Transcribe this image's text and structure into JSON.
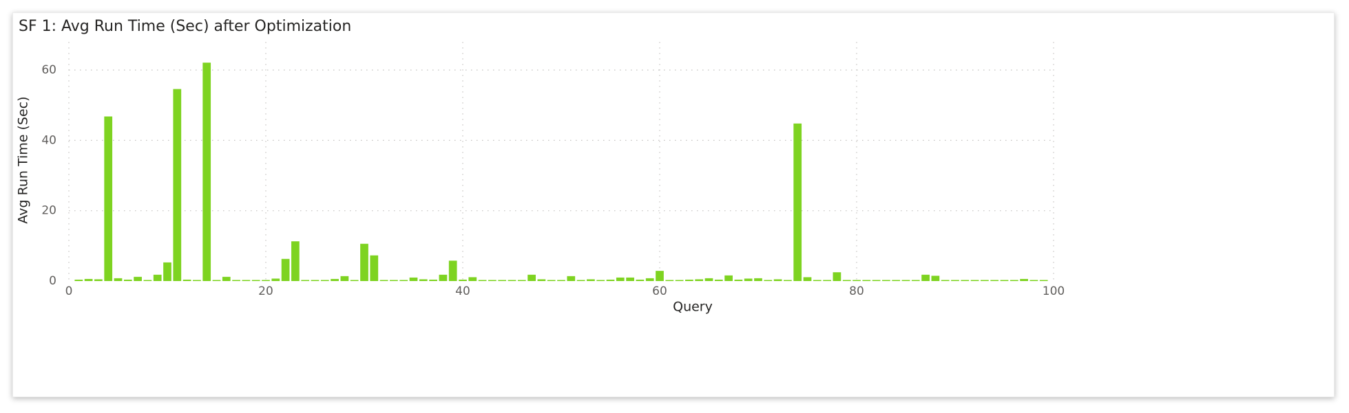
{
  "chart_data": {
    "type": "bar",
    "title": "SF 1: Avg Run Time (Sec) after Optimization",
    "xlabel": "Query",
    "ylabel": "Avg Run Time (Sec)",
    "xlim": [
      0,
      100
    ],
    "ylim": [
      0,
      68
    ],
    "xticks": [
      0,
      20,
      40,
      60,
      80,
      100
    ],
    "yticks": [
      0,
      20,
      40,
      60
    ],
    "grid": true,
    "legend": "none",
    "bar_color": "#7ed321",
    "x": [
      1,
      2,
      3,
      4,
      5,
      6,
      7,
      8,
      9,
      10,
      11,
      12,
      13,
      14,
      15,
      16,
      17,
      18,
      19,
      20,
      21,
      22,
      23,
      24,
      25,
      26,
      27,
      28,
      29,
      30,
      31,
      32,
      33,
      34,
      35,
      36,
      37,
      38,
      39,
      40,
      41,
      42,
      43,
      44,
      45,
      46,
      47,
      48,
      49,
      50,
      51,
      52,
      53,
      54,
      55,
      56,
      57,
      58,
      59,
      60,
      61,
      62,
      63,
      64,
      65,
      66,
      67,
      68,
      69,
      70,
      71,
      72,
      73,
      74,
      75,
      76,
      77,
      78,
      79,
      80,
      81,
      82,
      83,
      84,
      85,
      86,
      87,
      88,
      89,
      90,
      91,
      92,
      93,
      94,
      95,
      96,
      97,
      98,
      99
    ],
    "values": [
      0.4,
      0.6,
      0.5,
      46.8,
      0.8,
      0.4,
      1.2,
      0.3,
      1.8,
      5.3,
      54.6,
      0.4,
      0.3,
      62.1,
      0.3,
      1.2,
      0.3,
      0.3,
      0.3,
      0.3,
      0.7,
      6.3,
      11.3,
      0.3,
      0.3,
      0.3,
      0.6,
      1.4,
      0.3,
      10.6,
      7.3,
      0.3,
      0.3,
      0.3,
      1.0,
      0.5,
      0.4,
      1.8,
      5.8,
      0.4,
      1.1,
      0.3,
      0.3,
      0.3,
      0.3,
      0.3,
      1.8,
      0.5,
      0.3,
      0.3,
      1.4,
      0.3,
      0.5,
      0.3,
      0.4,
      1.0,
      1.0,
      0.4,
      0.8,
      2.9,
      0.3,
      0.3,
      0.4,
      0.5,
      0.8,
      0.4,
      1.6,
      0.4,
      0.7,
      0.8,
      0.3,
      0.5,
      0.3,
      44.8,
      1.1,
      0.3,
      0.3,
      2.5,
      0.3,
      0.3,
      0.3,
      0.3,
      0.3,
      0.3,
      0.3,
      0.3,
      1.8,
      1.5,
      0.3,
      0.3,
      0.3,
      0.3,
      0.3,
      0.3,
      0.3,
      0.3,
      0.6,
      0.3,
      0.3
    ]
  }
}
